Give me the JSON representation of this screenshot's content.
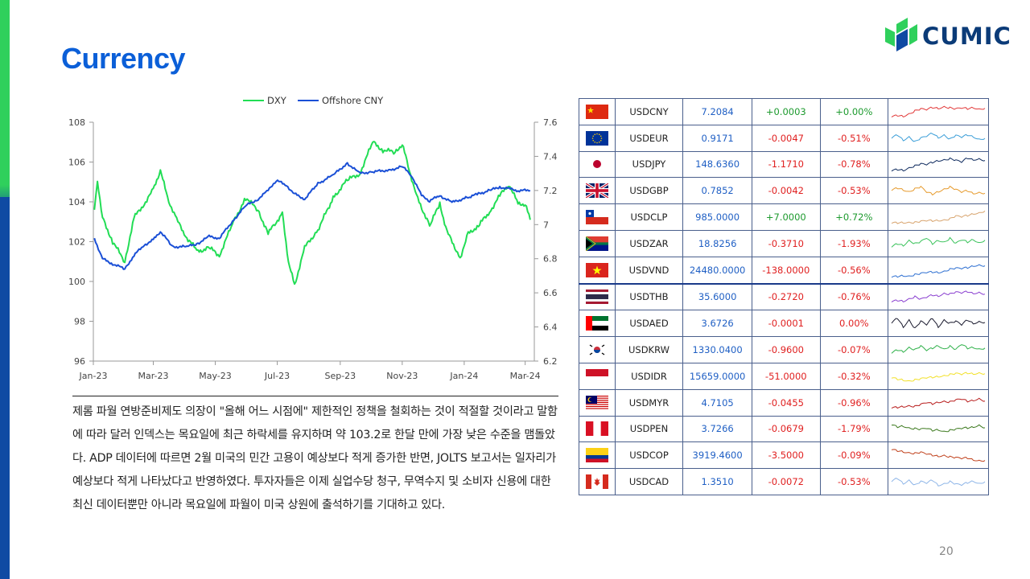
{
  "page": {
    "title": "Currency",
    "number": "20"
  },
  "logo": {
    "text": "CUMIC"
  },
  "commentary": "제롬 파월 연방준비제도 의장이 \"올해 어느 시점에\" 제한적인 정책을 철회하는 것이 적절할 것이라고 말함에 따라 달러 인덱스는 목요일에 최근 하락세를 유지하며 약 103.2로 한달 만에 가장 낮은 수준을 맴돌았다. ADP 데이터에 따르면 2월 미국의 민간 고용이 예상보다 적게 증가한 반면, JOLTS 보고서는 일자리가 예상보다 적게 나타났다고 반영하였다. 투자자들은 이제 실업수당 청구, 무역수지 및 소비자 신용에 대한 최신 데이터뿐만 아니라 목요일에 파월이 미국 상원에 출석하기를 기대하고 있다.",
  "chart_data": {
    "type": "line",
    "legend_position": "top",
    "x_ticks": [
      "Jan-23",
      "Mar-23",
      "May-23",
      "Jul-23",
      "Sep-23",
      "Nov-23",
      "Jan-24",
      "Mar-24"
    ],
    "y_left": {
      "ticks": [
        "108",
        "106",
        "104",
        "102",
        "100",
        "98",
        "96"
      ],
      "range": [
        96,
        108
      ]
    },
    "y_right": {
      "ticks": [
        "7.6",
        "7.4",
        "7.2",
        "7",
        "6.8",
        "6.6",
        "6.4",
        "6.2"
      ],
      "range": [
        6.2,
        7.6
      ]
    },
    "grid": false,
    "series": [
      {
        "name": "DXY",
        "axis": "left",
        "color": "#22dd55",
        "points": [
          [
            "2023-01-02",
            103.6
          ],
          [
            "2023-01-05",
            105.1
          ],
          [
            "2023-01-10",
            103.2
          ],
          [
            "2023-01-20",
            102.0
          ],
          [
            "2023-02-01",
            101.0
          ],
          [
            "2023-02-10",
            103.2
          ],
          [
            "2023-02-20",
            103.9
          ],
          [
            "2023-03-01",
            104.6
          ],
          [
            "2023-03-08",
            105.6
          ],
          [
            "2023-03-15",
            104.2
          ],
          [
            "2023-03-24",
            103.1
          ],
          [
            "2023-04-03",
            102.2
          ],
          [
            "2023-04-14",
            101.5
          ],
          [
            "2023-04-25",
            101.7
          ],
          [
            "2023-05-05",
            101.3
          ],
          [
            "2023-05-18",
            102.9
          ],
          [
            "2023-05-31",
            104.2
          ],
          [
            "2023-06-12",
            103.6
          ],
          [
            "2023-06-22",
            102.4
          ],
          [
            "2023-06-30",
            103.0
          ],
          [
            "2023-07-06",
            103.4
          ],
          [
            "2023-07-12",
            101.0
          ],
          [
            "2023-07-18",
            99.8
          ],
          [
            "2023-07-28",
            101.7
          ],
          [
            "2023-08-10",
            102.6
          ],
          [
            "2023-08-25",
            104.2
          ],
          [
            "2023-09-08",
            105.1
          ],
          [
            "2023-09-20",
            105.4
          ],
          [
            "2023-10-03",
            107.0
          ],
          [
            "2023-10-13",
            106.6
          ],
          [
            "2023-10-25",
            106.5
          ],
          [
            "2023-11-01",
            106.9
          ],
          [
            "2023-11-08",
            105.6
          ],
          [
            "2023-11-15",
            104.3
          ],
          [
            "2023-11-28",
            102.8
          ],
          [
            "2023-12-08",
            103.9
          ],
          [
            "2023-12-15",
            102.5
          ],
          [
            "2023-12-28",
            101.2
          ],
          [
            "2024-01-05",
            102.4
          ],
          [
            "2024-01-15",
            102.8
          ],
          [
            "2024-01-26",
            103.5
          ],
          [
            "2024-02-05",
            104.3
          ],
          [
            "2024-02-14",
            104.9
          ],
          [
            "2024-02-23",
            103.9
          ],
          [
            "2024-03-01",
            103.9
          ],
          [
            "2024-03-06",
            103.1
          ]
        ]
      },
      {
        "name": "Offshore CNY",
        "axis": "right",
        "color": "#1a4fd6",
        "points": [
          [
            "2023-01-02",
            6.92
          ],
          [
            "2023-01-10",
            6.8
          ],
          [
            "2023-01-20",
            6.77
          ],
          [
            "2023-02-01",
            6.74
          ],
          [
            "2023-02-10",
            6.82
          ],
          [
            "2023-02-20",
            6.88
          ],
          [
            "2023-03-01",
            6.91
          ],
          [
            "2023-03-08",
            6.96
          ],
          [
            "2023-03-20",
            6.87
          ],
          [
            "2023-04-03",
            6.87
          ],
          [
            "2023-04-14",
            6.89
          ],
          [
            "2023-04-25",
            6.93
          ],
          [
            "2023-05-05",
            6.92
          ],
          [
            "2023-05-18",
            7.02
          ],
          [
            "2023-05-31",
            7.11
          ],
          [
            "2023-06-12",
            7.15
          ],
          [
            "2023-06-22",
            7.2
          ],
          [
            "2023-06-30",
            7.26
          ],
          [
            "2023-07-10",
            7.23
          ],
          [
            "2023-07-18",
            7.18
          ],
          [
            "2023-07-28",
            7.15
          ],
          [
            "2023-08-10",
            7.24
          ],
          [
            "2023-08-25",
            7.29
          ],
          [
            "2023-09-08",
            7.36
          ],
          [
            "2023-09-20",
            7.3
          ],
          [
            "2023-10-03",
            7.31
          ],
          [
            "2023-10-20",
            7.32
          ],
          [
            "2023-11-01",
            7.34
          ],
          [
            "2023-11-10",
            7.29
          ],
          [
            "2023-11-20",
            7.17
          ],
          [
            "2023-11-28",
            7.14
          ],
          [
            "2023-12-08",
            7.17
          ],
          [
            "2023-12-20",
            7.13
          ],
          [
            "2024-01-05",
            7.16
          ],
          [
            "2024-01-15",
            7.18
          ],
          [
            "2024-01-26",
            7.2
          ],
          [
            "2024-02-05",
            7.22
          ],
          [
            "2024-02-14",
            7.21
          ],
          [
            "2024-02-23",
            7.2
          ],
          [
            "2024-03-06",
            7.2
          ]
        ]
      }
    ]
  },
  "fx_table": [
    {
      "flag": "cn",
      "pair": "USDCNY",
      "rate": "7.2084",
      "change": "+0.0003",
      "pct": "+0.00%",
      "dir": "pos",
      "spark_color": "#e23a3a",
      "spark": [
        0.2,
        0.3,
        0.25,
        0.4,
        0.55,
        0.65,
        0.6,
        0.75,
        0.7,
        0.8,
        0.72,
        0.65,
        0.7,
        0.68,
        0.75,
        0.66,
        0.7
      ]
    },
    {
      "flag": "eu",
      "pair": "USDEUR",
      "rate": "0.9171",
      "change": "-0.0047",
      "pct": "-0.51%",
      "dir": "neg",
      "spark_color": "#3b9ed8",
      "spark": [
        0.5,
        0.7,
        0.4,
        0.6,
        0.3,
        0.5,
        0.6,
        0.8,
        0.55,
        0.7,
        0.45,
        0.65,
        0.55,
        0.7,
        0.6,
        0.45,
        0.5
      ]
    },
    {
      "flag": "jp",
      "pair": "USDJPY",
      "rate": "148.6360",
      "change": "-1.1710",
      "pct": "-0.78%",
      "dir": "neg",
      "spark_color": "#0e2a5e",
      "spark": [
        0.1,
        0.2,
        0.15,
        0.3,
        0.4,
        0.5,
        0.45,
        0.6,
        0.7,
        0.75,
        0.8,
        0.7,
        0.6,
        0.85,
        0.75,
        0.8,
        0.7
      ]
    },
    {
      "flag": "gb",
      "pair": "USDGBP",
      "rate": "0.7852",
      "change": "-0.0042",
      "pct": "-0.53%",
      "dir": "neg",
      "spark_color": "#e69a2c",
      "spark": [
        0.5,
        0.65,
        0.55,
        0.45,
        0.6,
        0.7,
        0.4,
        0.3,
        0.45,
        0.6,
        0.7,
        0.55,
        0.4,
        0.5,
        0.35,
        0.4,
        0.35
      ]
    },
    {
      "flag": "cl",
      "pair": "USDCLP",
      "rate": "985.0000",
      "change": "+7.0000",
      "pct": "+0.72%",
      "dir": "pos",
      "spark_color": "#d8a46e",
      "spark": [
        0.15,
        0.18,
        0.2,
        0.22,
        0.2,
        0.25,
        0.28,
        0.3,
        0.32,
        0.35,
        0.4,
        0.55,
        0.5,
        0.6,
        0.7,
        0.75,
        0.85
      ]
    },
    {
      "flag": "za",
      "pair": "USDZAR",
      "rate": "18.8256",
      "change": "-0.3710",
      "pct": "-1.93%",
      "dir": "neg",
      "spark_color": "#39c25a",
      "spark": [
        0.3,
        0.5,
        0.4,
        0.7,
        0.5,
        0.6,
        0.8,
        0.5,
        0.7,
        0.6,
        0.8,
        0.5,
        0.7,
        0.6,
        0.75,
        0.55,
        0.7
      ]
    },
    {
      "flag": "vn",
      "pair": "USDVND",
      "rate": "24480.0000",
      "change": "-138.0000",
      "pct": "-0.56%",
      "dir": "neg",
      "spark_color": "#2d6fd1",
      "spark": [
        0.1,
        0.15,
        0.2,
        0.18,
        0.25,
        0.3,
        0.35,
        0.4,
        0.38,
        0.45,
        0.55,
        0.6,
        0.58,
        0.65,
        0.75,
        0.8,
        0.75
      ]
    },
    {
      "flag": "th",
      "pair": "USDTHB",
      "rate": "35.6000",
      "change": "-0.2720",
      "pct": "-0.76%",
      "dir": "neg",
      "spark_color": "#8a3fd0",
      "spark": [
        0.2,
        0.3,
        0.25,
        0.4,
        0.5,
        0.35,
        0.45,
        0.6,
        0.55,
        0.7,
        0.65,
        0.75,
        0.7,
        0.8,
        0.7,
        0.75,
        0.65
      ]
    },
    {
      "flag": "ae",
      "pair": "USDAED",
      "rate": "3.6726",
      "change": "-0.0001",
      "pct": "0.00%",
      "dir": "zero",
      "spark_color": "#1a1a2e",
      "spark": [
        0.5,
        0.8,
        0.3,
        0.7,
        0.2,
        0.6,
        0.4,
        0.8,
        0.3,
        0.7,
        0.5,
        0.6,
        0.4,
        0.7,
        0.5,
        0.6,
        0.55
      ]
    },
    {
      "flag": "kr",
      "pair": "USDKRW",
      "rate": "1330.0400",
      "change": "-0.9600",
      "pct": "-0.07%",
      "dir": "neg",
      "spark_color": "#2fb14a",
      "spark": [
        0.3,
        0.5,
        0.4,
        0.65,
        0.5,
        0.7,
        0.45,
        0.6,
        0.75,
        0.55,
        0.7,
        0.5,
        0.8,
        0.6,
        0.65,
        0.55,
        0.6
      ]
    },
    {
      "flag": "id",
      "pair": "USDIDR",
      "rate": "15659.0000",
      "change": "-51.0000",
      "pct": "-0.32%",
      "dir": "neg",
      "spark_color": "#f2e12a",
      "spark": [
        0.4,
        0.35,
        0.3,
        0.25,
        0.3,
        0.35,
        0.4,
        0.45,
        0.5,
        0.55,
        0.6,
        0.65,
        0.6,
        0.7,
        0.65,
        0.7,
        0.65
      ]
    },
    {
      "flag": "my",
      "pair": "USDMYR",
      "rate": "4.7105",
      "change": "-0.0455",
      "pct": "-0.96%",
      "dir": "neg",
      "spark_color": "#b81d1d",
      "spark": [
        0.2,
        0.25,
        0.3,
        0.35,
        0.3,
        0.4,
        0.5,
        0.45,
        0.55,
        0.6,
        0.55,
        0.65,
        0.7,
        0.6,
        0.65,
        0.75,
        0.6
      ]
    },
    {
      "flag": "pe",
      "pair": "USDPEN",
      "rate": "3.7266",
      "change": "-0.0679",
      "pct": "-1.79%",
      "dir": "neg",
      "spark_color": "#3d7a1f",
      "spark": [
        0.7,
        0.6,
        0.65,
        0.55,
        0.5,
        0.45,
        0.5,
        0.4,
        0.45,
        0.35,
        0.4,
        0.45,
        0.5,
        0.55,
        0.6,
        0.7,
        0.55
      ]
    },
    {
      "flag": "co",
      "pair": "USDCOP",
      "rate": "3919.4600",
      "change": "-3.5000",
      "pct": "-0.09%",
      "dir": "neg",
      "spark_color": "#c0401b",
      "spark": [
        0.8,
        0.75,
        0.7,
        0.65,
        0.6,
        0.65,
        0.55,
        0.5,
        0.45,
        0.5,
        0.4,
        0.35,
        0.3,
        0.35,
        0.25,
        0.2,
        0.2
      ]
    },
    {
      "flag": "ca",
      "pair": "USDCAD",
      "rate": "1.3510",
      "change": "-0.0072",
      "pct": "-0.53%",
      "dir": "neg",
      "spark_color": "#8fb6e8",
      "spark": [
        0.5,
        0.7,
        0.4,
        0.6,
        0.3,
        0.5,
        0.4,
        0.6,
        0.3,
        0.4,
        0.5,
        0.35,
        0.3,
        0.45,
        0.55,
        0.4,
        0.5
      ]
    }
  ]
}
